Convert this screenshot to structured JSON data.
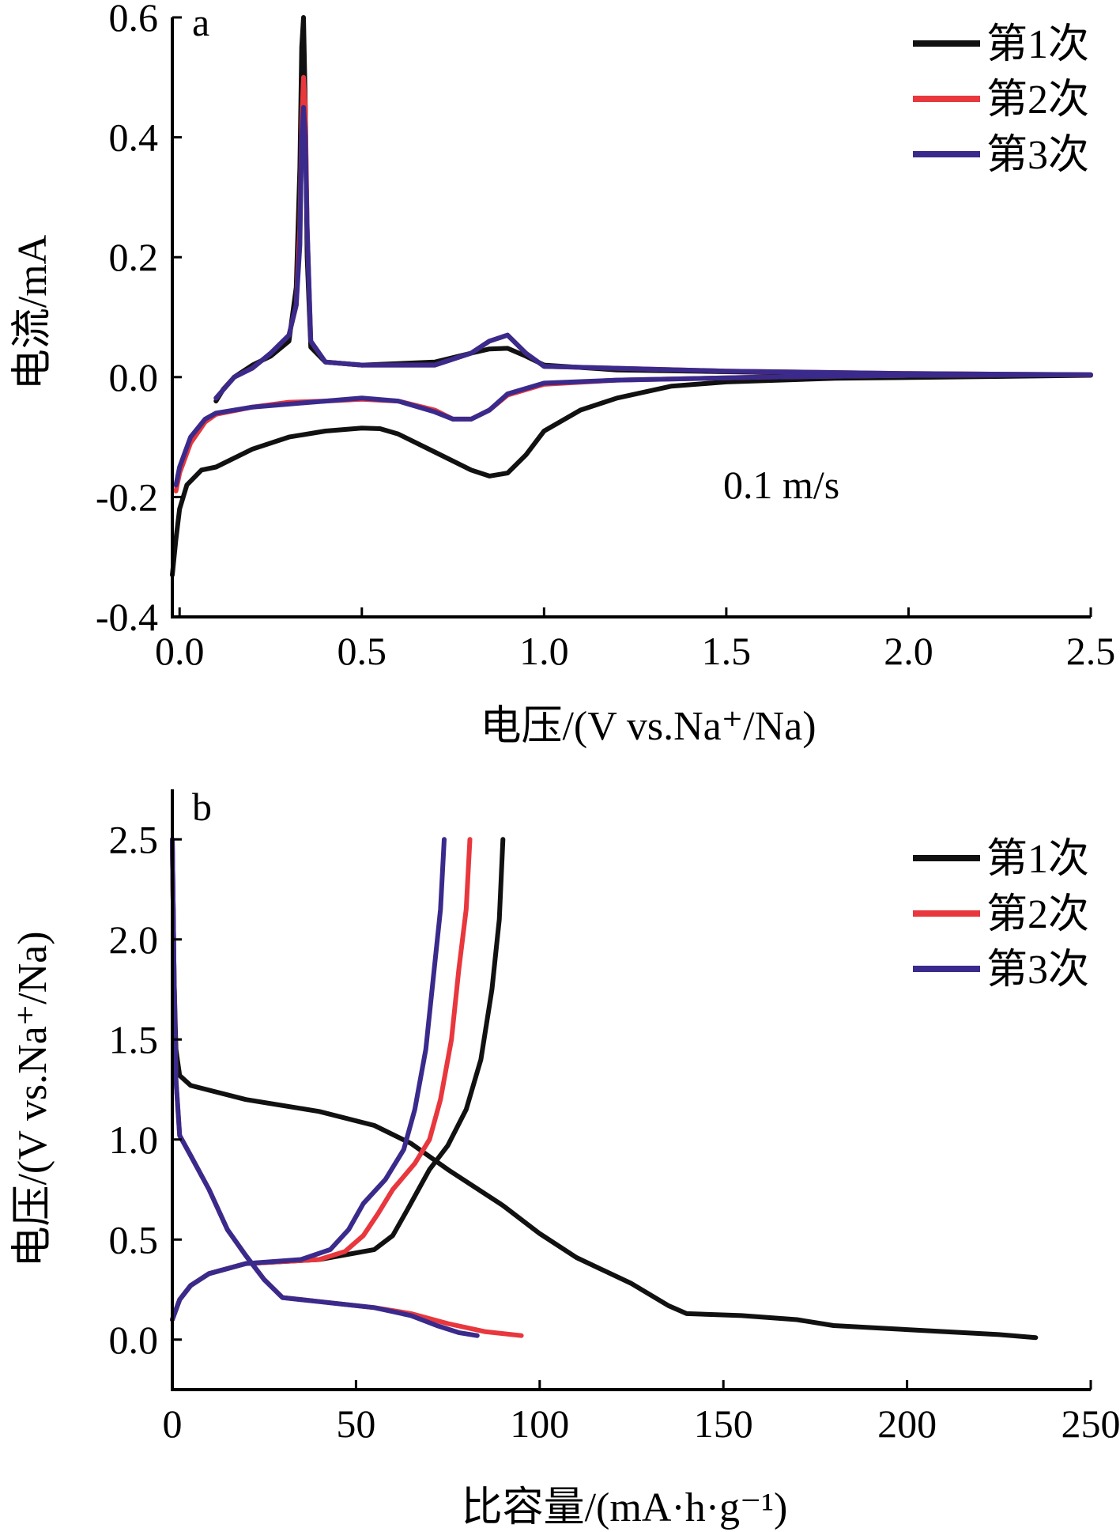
{
  "colors": {
    "cycle1": "#111111",
    "cycle2": "#e8373d",
    "cycle3": "#3a2a8c"
  },
  "chart_data": [
    {
      "id": "a",
      "type": "line",
      "panel_label": "a",
      "xlabel": "电压/(V vs.Na⁺/Na)",
      "ylabel": "电流/mA",
      "xlim": [
        -0.02,
        2.5
      ],
      "ylim": [
        -0.4,
        0.6
      ],
      "x_ticks": [
        0.0,
        0.5,
        1.0,
        1.5,
        2.0,
        2.5
      ],
      "x_tick_labels": [
        "0.0",
        "0.5",
        "1.0",
        "1.5",
        "2.0",
        "2.5"
      ],
      "y_ticks": [
        0.6,
        0.4,
        0.2,
        0.0,
        -0.2,
        -0.4
      ],
      "y_tick_labels": [
        "0.6",
        "0.4",
        "0.2",
        "0.0",
        "-0.2",
        "-0.4"
      ],
      "annotation": "0.1 m/s",
      "grid": false,
      "legend_position": "top-right",
      "series": [
        {
          "name": "第1次",
          "color_key": "cycle1",
          "points": [
            [
              -0.02,
              -0.33
            ],
            [
              -0.01,
              -0.27
            ],
            [
              0.0,
              -0.22
            ],
            [
              0.02,
              -0.18
            ],
            [
              0.06,
              -0.155
            ],
            [
              0.1,
              -0.15
            ],
            [
              0.2,
              -0.12
            ],
            [
              0.3,
              -0.1
            ],
            [
              0.4,
              -0.09
            ],
            [
              0.5,
              -0.085
            ],
            [
              0.55,
              -0.086
            ],
            [
              0.6,
              -0.095
            ],
            [
              0.7,
              -0.125
            ],
            [
              0.8,
              -0.155
            ],
            [
              0.85,
              -0.165
            ],
            [
              0.9,
              -0.16
            ],
            [
              0.95,
              -0.13
            ],
            [
              1.0,
              -0.09
            ],
            [
              1.1,
              -0.055
            ],
            [
              1.2,
              -0.035
            ],
            [
              1.35,
              -0.015
            ],
            [
              1.5,
              -0.008
            ],
            [
              1.8,
              -0.002
            ],
            [
              2.1,
              0.0
            ],
            [
              2.5,
              0.003
            ],
            [
              2.4,
              0.004
            ],
            [
              2.0,
              0.005
            ],
            [
              1.6,
              0.008
            ],
            [
              1.2,
              0.012
            ],
            [
              1.0,
              0.02
            ],
            [
              0.95,
              0.035
            ],
            [
              0.9,
              0.048
            ],
            [
              0.85,
              0.047
            ],
            [
              0.8,
              0.04
            ],
            [
              0.7,
              0.025
            ],
            [
              0.5,
              0.02
            ],
            [
              0.4,
              0.025
            ],
            [
              0.36,
              0.05
            ],
            [
              0.35,
              0.2
            ],
            [
              0.345,
              0.45
            ],
            [
              0.34,
              0.6
            ],
            [
              0.335,
              0.55
            ],
            [
              0.33,
              0.35
            ],
            [
              0.32,
              0.15
            ],
            [
              0.3,
              0.06
            ],
            [
              0.25,
              0.035
            ],
            [
              0.2,
              0.02
            ],
            [
              0.15,
              0.0
            ],
            [
              0.12,
              -0.02
            ],
            [
              0.1,
              -0.04
            ]
          ]
        },
        {
          "name": "第2次",
          "color_key": "cycle2",
          "points": [
            [
              -0.01,
              -0.19
            ],
            [
              0.0,
              -0.16
            ],
            [
              0.03,
              -0.11
            ],
            [
              0.07,
              -0.075
            ],
            [
              0.1,
              -0.062
            ],
            [
              0.2,
              -0.05
            ],
            [
              0.3,
              -0.042
            ],
            [
              0.4,
              -0.04
            ],
            [
              0.5,
              -0.037
            ],
            [
              0.6,
              -0.04
            ],
            [
              0.7,
              -0.055
            ],
            [
              0.75,
              -0.07
            ],
            [
              0.8,
              -0.07
            ],
            [
              0.85,
              -0.055
            ],
            [
              0.9,
              -0.03
            ],
            [
              1.0,
              -0.012
            ],
            [
              1.2,
              -0.005
            ],
            [
              1.6,
              0.0
            ],
            [
              2.0,
              0.003
            ],
            [
              2.5,
              0.004
            ],
            [
              2.0,
              0.006
            ],
            [
              1.5,
              0.01
            ],
            [
              1.0,
              0.018
            ],
            [
              0.95,
              0.04
            ],
            [
              0.9,
              0.07
            ],
            [
              0.85,
              0.06
            ],
            [
              0.8,
              0.04
            ],
            [
              0.7,
              0.02
            ],
            [
              0.5,
              0.02
            ],
            [
              0.4,
              0.025
            ],
            [
              0.36,
              0.06
            ],
            [
              0.35,
              0.25
            ],
            [
              0.345,
              0.45
            ],
            [
              0.34,
              0.5
            ],
            [
              0.335,
              0.42
            ],
            [
              0.33,
              0.25
            ],
            [
              0.32,
              0.12
            ],
            [
              0.3,
              0.07
            ],
            [
              0.25,
              0.04
            ],
            [
              0.2,
              0.015
            ],
            [
              0.15,
              0.0
            ],
            [
              0.1,
              -0.035
            ]
          ]
        },
        {
          "name": "第3次",
          "color_key": "cycle3",
          "points": [
            [
              -0.01,
              -0.18
            ],
            [
              0.0,
              -0.15
            ],
            [
              0.03,
              -0.1
            ],
            [
              0.07,
              -0.07
            ],
            [
              0.1,
              -0.06
            ],
            [
              0.2,
              -0.05
            ],
            [
              0.3,
              -0.045
            ],
            [
              0.4,
              -0.04
            ],
            [
              0.5,
              -0.035
            ],
            [
              0.6,
              -0.04
            ],
            [
              0.7,
              -0.058
            ],
            [
              0.75,
              -0.07
            ],
            [
              0.8,
              -0.07
            ],
            [
              0.85,
              -0.055
            ],
            [
              0.9,
              -0.028
            ],
            [
              1.0,
              -0.01
            ],
            [
              1.2,
              -0.005
            ],
            [
              1.6,
              0.0
            ],
            [
              2.0,
              0.003
            ],
            [
              2.5,
              0.004
            ],
            [
              2.0,
              0.006
            ],
            [
              1.5,
              0.01
            ],
            [
              1.0,
              0.018
            ],
            [
              0.95,
              0.04
            ],
            [
              0.9,
              0.07
            ],
            [
              0.85,
              0.06
            ],
            [
              0.8,
              0.04
            ],
            [
              0.7,
              0.02
            ],
            [
              0.5,
              0.02
            ],
            [
              0.4,
              0.025
            ],
            [
              0.36,
              0.06
            ],
            [
              0.35,
              0.25
            ],
            [
              0.345,
              0.4
            ],
            [
              0.34,
              0.45
            ],
            [
              0.335,
              0.4
            ],
            [
              0.33,
              0.22
            ],
            [
              0.32,
              0.12
            ],
            [
              0.3,
              0.07
            ],
            [
              0.25,
              0.04
            ],
            [
              0.2,
              0.015
            ],
            [
              0.15,
              0.0
            ],
            [
              0.1,
              -0.035
            ]
          ]
        }
      ]
    },
    {
      "id": "b",
      "type": "line",
      "panel_label": "b",
      "xlabel": "比容量/(mA·h·g⁻¹)",
      "ylabel": "电压/(V vs.Na⁺/Na)",
      "xlim": [
        0,
        250
      ],
      "ylim": [
        -0.25,
        2.75
      ],
      "x_ticks": [
        0,
        50,
        100,
        150,
        200,
        250
      ],
      "x_tick_labels": [
        "0",
        "50",
        "100",
        "150",
        "200",
        "250"
      ],
      "y_ticks": [
        2.5,
        2.0,
        1.5,
        1.0,
        0.5,
        0.0
      ],
      "y_tick_labels": [
        "2.5",
        "2.0",
        "1.5",
        "1.0",
        "0.5",
        "0.0"
      ],
      "grid": false,
      "legend_position": "top-right",
      "series": [
        {
          "name": "第1次",
          "color_key": "cycle1",
          "discharge": [
            [
              0,
              2.5
            ],
            [
              0.5,
              1.8
            ],
            [
              1,
              1.45
            ],
            [
              2,
              1.32
            ],
            [
              5,
              1.27
            ],
            [
              20,
              1.2
            ],
            [
              40,
              1.14
            ],
            [
              55,
              1.07
            ],
            [
              65,
              0.98
            ],
            [
              75,
              0.85
            ],
            [
              90,
              0.67
            ],
            [
              100,
              0.53
            ],
            [
              110,
              0.41
            ],
            [
              125,
              0.28
            ],
            [
              135,
              0.17
            ],
            [
              140,
              0.13
            ],
            [
              155,
              0.12
            ],
            [
              170,
              0.1
            ],
            [
              180,
              0.07
            ],
            [
              200,
              0.05
            ],
            [
              225,
              0.025
            ],
            [
              235,
              0.01
            ]
          ],
          "charge": [
            [
              0,
              0.1
            ],
            [
              2,
              0.2
            ],
            [
              5,
              0.27
            ],
            [
              10,
              0.33
            ],
            [
              20,
              0.38
            ],
            [
              40,
              0.4
            ],
            [
              55,
              0.45
            ],
            [
              60,
              0.52
            ],
            [
              64,
              0.65
            ],
            [
              67,
              0.75
            ],
            [
              70,
              0.85
            ],
            [
              75,
              0.97
            ],
            [
              80,
              1.15
            ],
            [
              84,
              1.4
            ],
            [
              87,
              1.75
            ],
            [
              89,
              2.1
            ],
            [
              90,
              2.5
            ]
          ]
        },
        {
          "name": "第2次",
          "color_key": "cycle2",
          "discharge": [
            [
              0,
              2.5
            ],
            [
              0.5,
              1.8
            ],
            [
              1,
              1.3
            ],
            [
              2,
              1.02
            ],
            [
              5,
              0.92
            ],
            [
              10,
              0.75
            ],
            [
              15,
              0.55
            ],
            [
              20,
              0.42
            ],
            [
              25,
              0.3
            ],
            [
              30,
              0.21
            ],
            [
              40,
              0.19
            ],
            [
              55,
              0.16
            ],
            [
              65,
              0.13
            ],
            [
              75,
              0.08
            ],
            [
              85,
              0.04
            ],
            [
              95,
              0.02
            ]
          ],
          "charge": [
            [
              0,
              0.1
            ],
            [
              2,
              0.2
            ],
            [
              5,
              0.27
            ],
            [
              10,
              0.33
            ],
            [
              20,
              0.38
            ],
            [
              40,
              0.4
            ],
            [
              47,
              0.44
            ],
            [
              52,
              0.52
            ],
            [
              56,
              0.63
            ],
            [
              60,
              0.75
            ],
            [
              66,
              0.88
            ],
            [
              70,
              1.0
            ],
            [
              73,
              1.2
            ],
            [
              76,
              1.5
            ],
            [
              78,
              1.85
            ],
            [
              80,
              2.15
            ],
            [
              81,
              2.5
            ]
          ]
        },
        {
          "name": "第3次",
          "color_key": "cycle3",
          "discharge": [
            [
              0,
              2.5
            ],
            [
              0.5,
              1.8
            ],
            [
              1,
              1.3
            ],
            [
              2,
              1.02
            ],
            [
              5,
              0.92
            ],
            [
              10,
              0.75
            ],
            [
              15,
              0.55
            ],
            [
              20,
              0.42
            ],
            [
              25,
              0.3
            ],
            [
              30,
              0.21
            ],
            [
              40,
              0.19
            ],
            [
              55,
              0.16
            ],
            [
              65,
              0.12
            ],
            [
              72,
              0.07
            ],
            [
              78,
              0.035
            ],
            [
              83,
              0.02
            ]
          ],
          "charge": [
            [
              0,
              0.1
            ],
            [
              2,
              0.2
            ],
            [
              5,
              0.27
            ],
            [
              10,
              0.33
            ],
            [
              20,
              0.38
            ],
            [
              35,
              0.4
            ],
            [
              43,
              0.45
            ],
            [
              48,
              0.55
            ],
            [
              52,
              0.68
            ],
            [
              58,
              0.8
            ],
            [
              63,
              0.95
            ],
            [
              66,
              1.15
            ],
            [
              69,
              1.45
            ],
            [
              71,
              1.8
            ],
            [
              73,
              2.15
            ],
            [
              74,
              2.5
            ]
          ]
        }
      ]
    }
  ]
}
